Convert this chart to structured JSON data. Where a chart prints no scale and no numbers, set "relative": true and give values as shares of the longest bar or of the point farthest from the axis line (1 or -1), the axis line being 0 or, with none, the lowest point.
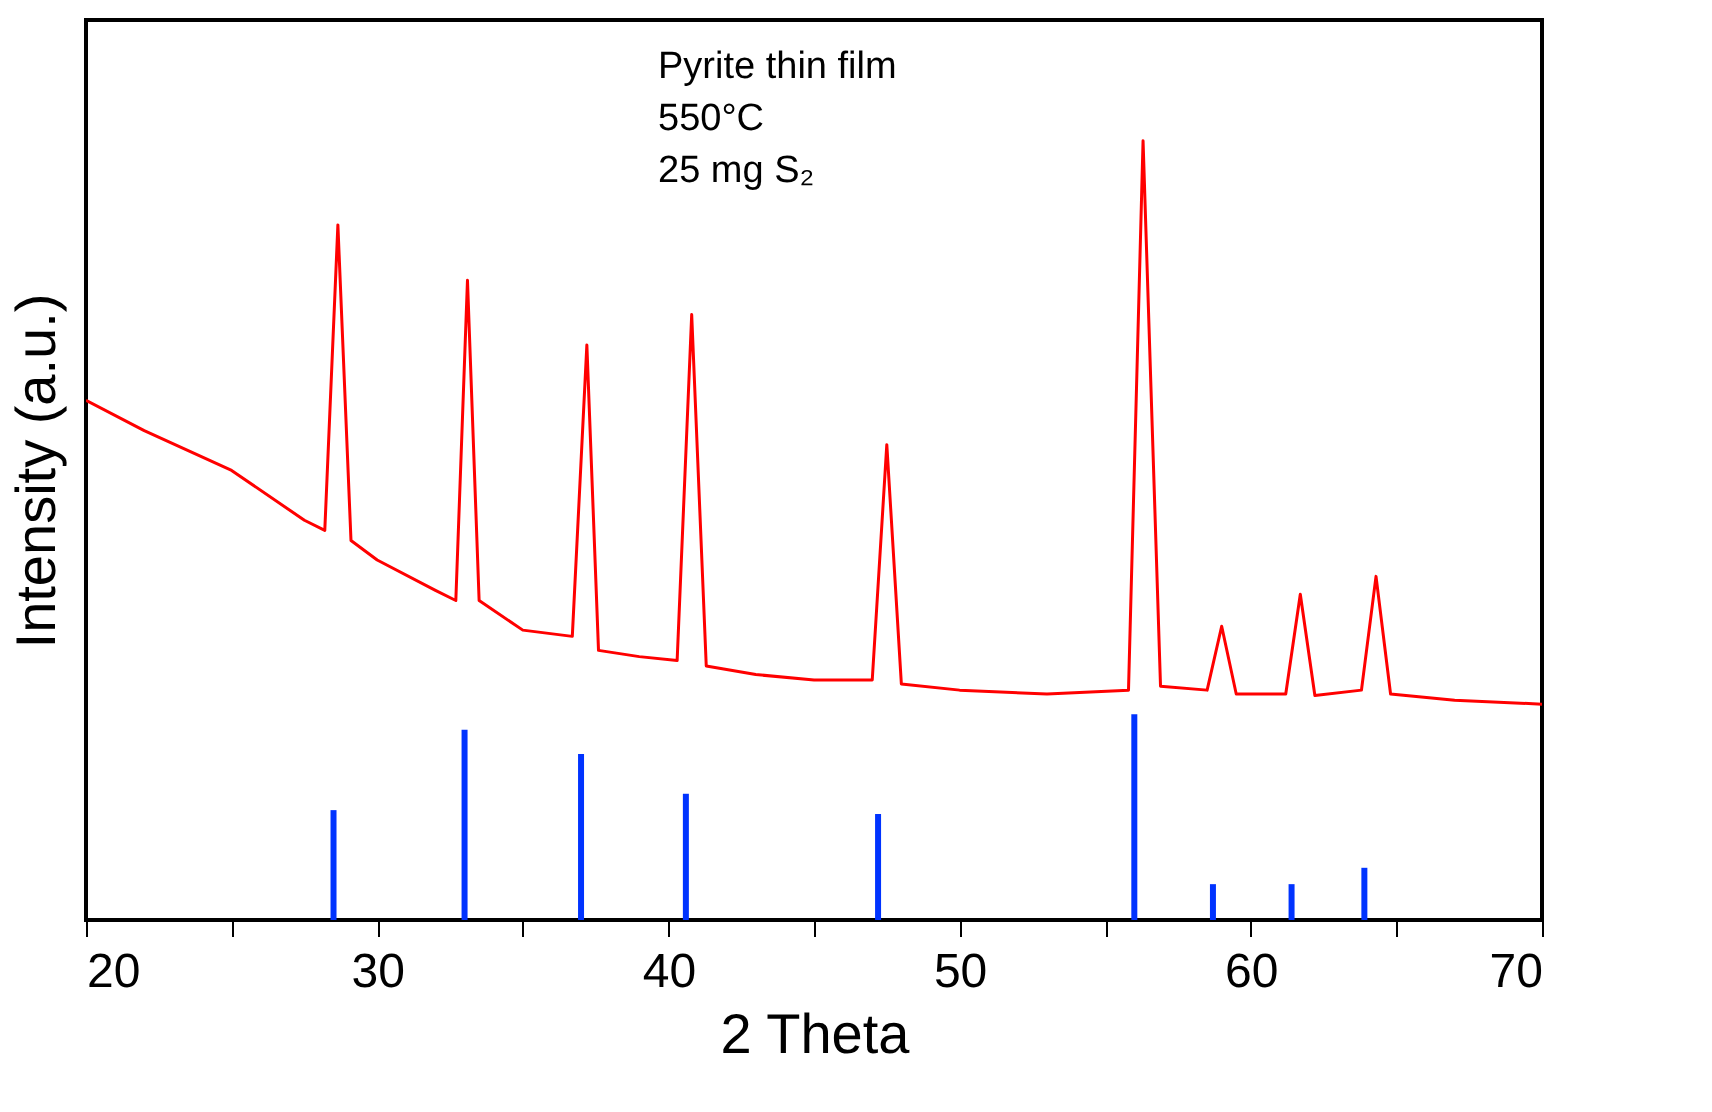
{
  "chart_data": {
    "type": "line",
    "xlabel": "2 Theta",
    "ylabel": "Intensity (a.u.)",
    "relative": true,
    "xlim": [
      20,
      70
    ],
    "xticks": [
      20,
      {
        "value": 25,
        "label": null
      },
      30,
      {
        "value": 35,
        "label": null
      },
      40,
      {
        "value": 45,
        "label": null
      },
      50,
      {
        "value": 55,
        "label": null
      },
      60,
      {
        "value": 65,
        "label": null
      },
      70
    ],
    "annotations": [
      "Pyrite thin film",
      "550°C",
      "25 mg S₂"
    ],
    "series": [
      {
        "color": "#ff0000",
        "x": [
          20,
          22,
          25,
          27.5,
          28.2,
          28.65,
          29.1,
          30,
          32,
          32.7,
          33.1,
          33.5,
          35,
          36.7,
          37.2,
          37.6,
          39,
          40.3,
          40.8,
          41.3,
          43,
          45,
          47.0,
          47.5,
          48,
          50,
          53,
          55.8,
          56.3,
          56.9,
          58.5,
          59.0,
          59.5,
          61.2,
          61.7,
          62.2,
          63.8,
          64.3,
          64.8,
          67,
          70
        ],
        "values": [
          0.667,
          0.628,
          0.577,
          0.513,
          0.5,
          0.892,
          0.487,
          0.462,
          0.423,
          0.41,
          0.821,
          0.41,
          0.372,
          0.364,
          0.738,
          0.346,
          0.338,
          0.333,
          0.777,
          0.326,
          0.315,
          0.308,
          0.308,
          0.61,
          0.303,
          0.295,
          0.29,
          0.295,
          1.0,
          0.3,
          0.295,
          0.377,
          0.29,
          0.29,
          0.418,
          0.288,
          0.295,
          0.441,
          0.29,
          0.282,
          0.277
        ]
      },
      {
        "type": "bar",
        "color": "#0033ff",
        "x": [
          28.5,
          33.0,
          37.0,
          40.6,
          47.2,
          56.0,
          58.7,
          61.4,
          63.9
        ],
        "values": [
          0.141,
          0.244,
          0.213,
          0.162,
          0.136,
          0.264,
          0.046,
          0.046,
          0.067
        ]
      }
    ]
  }
}
